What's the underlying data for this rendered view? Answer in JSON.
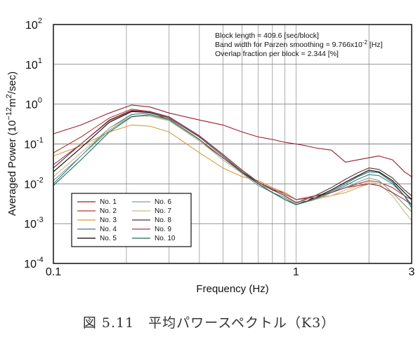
{
  "chart_data": {
    "type": "line",
    "xlabel": "Frequency (Hz)",
    "ylabel_parts": {
      "pre": "Averaged Power (10",
      "exp1": "−12",
      "mid": "m",
      "exp2": "2",
      "post": "/sec)"
    },
    "x_scale": "log",
    "y_scale": "log",
    "xlim": [
      0.1,
      3
    ],
    "ylim_exponents": [
      -4,
      2
    ],
    "x_ticks": [
      {
        "value": 0.1,
        "label": "0.1"
      },
      {
        "value": 1,
        "label": "1"
      },
      {
        "value": 3,
        "label": "3"
      }
    ],
    "y_ticks": [
      {
        "exp": 2,
        "base": "10",
        "sup": "2"
      },
      {
        "exp": 1,
        "base": "10",
        "sup": "1"
      },
      {
        "exp": 0,
        "base": "10",
        "sup": "0"
      },
      {
        "exp": -1,
        "base": "10",
        "sup": "-1"
      },
      {
        "exp": -2,
        "base": "10",
        "sup": "-2"
      },
      {
        "exp": -3,
        "base": "10",
        "sup": "-3"
      },
      {
        "exp": -4,
        "base": "10",
        "sup": "-4"
      }
    ],
    "grid": true,
    "legend_position": "lower-left",
    "annotations": [
      "Block length = 409.6 [sec/block]",
      "Band width for Parzen smoothing = 9.766x10",
      "Overlap fraction per block = 2.344 [%]"
    ],
    "annotation_exponent": "-2",
    "annotation_suffix": " [Hz]",
    "series": [
      {
        "name": "No. 1",
        "color": "#9a1c2c",
        "points": [
          [
            0.1,
            0.18
          ],
          [
            0.13,
            0.3
          ],
          [
            0.17,
            0.6
          ],
          [
            0.21,
            0.95
          ],
          [
            0.25,
            0.85
          ],
          [
            0.3,
            0.6
          ],
          [
            0.4,
            0.4
          ],
          [
            0.5,
            0.3
          ],
          [
            0.6,
            0.2
          ],
          [
            0.7,
            0.15
          ],
          [
            0.8,
            0.13
          ],
          [
            0.9,
            0.11
          ],
          [
            1.0,
            0.1
          ],
          [
            1.1,
            0.09
          ],
          [
            1.2,
            0.08
          ],
          [
            1.4,
            0.07
          ],
          [
            1.6,
            0.035
          ],
          [
            1.8,
            0.04
          ],
          [
            2.0,
            0.045
          ],
          [
            2.2,
            0.05
          ],
          [
            2.5,
            0.04
          ],
          [
            2.8,
            0.02
          ],
          [
            3.0,
            0.015
          ]
        ]
      },
      {
        "name": "No. 2",
        "color": "#b53a2f",
        "points": [
          [
            0.1,
            0.06
          ],
          [
            0.13,
            0.15
          ],
          [
            0.17,
            0.45
          ],
          [
            0.21,
            0.75
          ],
          [
            0.25,
            0.65
          ],
          [
            0.3,
            0.4
          ],
          [
            0.4,
            0.12
          ],
          [
            0.5,
            0.045
          ],
          [
            0.6,
            0.02
          ],
          [
            0.7,
            0.011
          ],
          [
            0.8,
            0.007
          ],
          [
            0.9,
            0.006
          ],
          [
            1.0,
            0.004
          ],
          [
            1.2,
            0.005
          ],
          [
            1.4,
            0.006
          ],
          [
            1.6,
            0.008
          ],
          [
            1.8,
            0.01
          ],
          [
            2.0,
            0.012
          ],
          [
            2.2,
            0.011
          ],
          [
            2.5,
            0.008
          ],
          [
            2.8,
            0.005
          ],
          [
            3.0,
            0.004
          ]
        ]
      },
      {
        "name": "No. 3",
        "color": "#d69a3a",
        "points": [
          [
            0.1,
            0.05
          ],
          [
            0.13,
            0.09
          ],
          [
            0.17,
            0.2
          ],
          [
            0.21,
            0.3
          ],
          [
            0.25,
            0.28
          ],
          [
            0.3,
            0.2
          ],
          [
            0.4,
            0.06
          ],
          [
            0.5,
            0.025
          ],
          [
            0.6,
            0.015
          ],
          [
            0.7,
            0.012
          ],
          [
            0.8,
            0.008
          ],
          [
            0.9,
            0.006
          ],
          [
            1.0,
            0.004
          ],
          [
            1.2,
            0.0045
          ],
          [
            1.4,
            0.005
          ],
          [
            1.6,
            0.006
          ],
          [
            1.8,
            0.008
          ],
          [
            2.0,
            0.01
          ],
          [
            2.2,
            0.009
          ],
          [
            2.5,
            0.006
          ],
          [
            2.8,
            0.003
          ],
          [
            3.0,
            0.002
          ]
        ]
      },
      {
        "name": "No. 4",
        "color": "#3a7a86",
        "points": [
          [
            0.1,
            0.01
          ],
          [
            0.13,
            0.05
          ],
          [
            0.17,
            0.25
          ],
          [
            0.21,
            0.55
          ],
          [
            0.25,
            0.6
          ],
          [
            0.3,
            0.45
          ],
          [
            0.4,
            0.15
          ],
          [
            0.5,
            0.05
          ],
          [
            0.6,
            0.02
          ],
          [
            0.7,
            0.01
          ],
          [
            0.8,
            0.006
          ],
          [
            0.9,
            0.004
          ],
          [
            1.0,
            0.003
          ],
          [
            1.2,
            0.004
          ],
          [
            1.4,
            0.006
          ],
          [
            1.6,
            0.009
          ],
          [
            1.8,
            0.013
          ],
          [
            2.0,
            0.017
          ],
          [
            2.2,
            0.016
          ],
          [
            2.5,
            0.01
          ],
          [
            2.8,
            0.005
          ],
          [
            3.0,
            0.003
          ]
        ]
      },
      {
        "name": "No. 5",
        "color": "#000000",
        "points": [
          [
            0.1,
            0.02
          ],
          [
            0.13,
            0.08
          ],
          [
            0.17,
            0.35
          ],
          [
            0.21,
            0.65
          ],
          [
            0.25,
            0.62
          ],
          [
            0.3,
            0.45
          ],
          [
            0.4,
            0.15
          ],
          [
            0.5,
            0.05
          ],
          [
            0.6,
            0.02
          ],
          [
            0.7,
            0.01
          ],
          [
            0.8,
            0.006
          ],
          [
            0.9,
            0.0045
          ],
          [
            1.0,
            0.003
          ],
          [
            1.2,
            0.0045
          ],
          [
            1.4,
            0.007
          ],
          [
            1.6,
            0.011
          ],
          [
            1.8,
            0.016
          ],
          [
            2.0,
            0.022
          ],
          [
            2.2,
            0.02
          ],
          [
            2.5,
            0.012
          ],
          [
            2.8,
            0.006
          ],
          [
            3.0,
            0.004
          ]
        ]
      },
      {
        "name": "No. 6",
        "color": "#7fa090",
        "points": [
          [
            0.1,
            0.012
          ],
          [
            0.13,
            0.05
          ],
          [
            0.17,
            0.22
          ],
          [
            0.21,
            0.5
          ],
          [
            0.25,
            0.52
          ],
          [
            0.3,
            0.4
          ],
          [
            0.4,
            0.12
          ],
          [
            0.5,
            0.04
          ],
          [
            0.6,
            0.018
          ],
          [
            0.7,
            0.009
          ],
          [
            0.8,
            0.006
          ],
          [
            0.9,
            0.0045
          ],
          [
            1.0,
            0.003
          ],
          [
            1.2,
            0.004
          ],
          [
            1.4,
            0.006
          ],
          [
            1.6,
            0.008
          ],
          [
            1.8,
            0.011
          ],
          [
            2.0,
            0.014
          ],
          [
            2.2,
            0.012
          ],
          [
            2.5,
            0.006
          ],
          [
            2.8,
            0.003
          ],
          [
            3.0,
            0.002
          ]
        ]
      },
      {
        "name": "No. 7",
        "color": "#c9b88c",
        "points": [
          [
            0.1,
            0.015
          ],
          [
            0.13,
            0.06
          ],
          [
            0.17,
            0.25
          ],
          [
            0.21,
            0.5
          ],
          [
            0.25,
            0.5
          ],
          [
            0.3,
            0.38
          ],
          [
            0.4,
            0.12
          ],
          [
            0.5,
            0.04
          ],
          [
            0.6,
            0.018
          ],
          [
            0.7,
            0.01
          ],
          [
            0.8,
            0.007
          ],
          [
            0.9,
            0.005
          ],
          [
            1.0,
            0.0035
          ],
          [
            1.2,
            0.004
          ],
          [
            1.4,
            0.005
          ],
          [
            1.6,
            0.007
          ],
          [
            1.8,
            0.009
          ],
          [
            2.0,
            0.011
          ],
          [
            2.2,
            0.01
          ],
          [
            2.5,
            0.005
          ],
          [
            2.8,
            0.002
          ],
          [
            3.0,
            0.0012
          ]
        ]
      },
      {
        "name": "No. 8",
        "color": "#5a2f35",
        "points": [
          [
            0.1,
            0.025
          ],
          [
            0.13,
            0.1
          ],
          [
            0.17,
            0.4
          ],
          [
            0.21,
            0.7
          ],
          [
            0.25,
            0.65
          ],
          [
            0.3,
            0.48
          ],
          [
            0.4,
            0.16
          ],
          [
            0.5,
            0.055
          ],
          [
            0.6,
            0.022
          ],
          [
            0.7,
            0.011
          ],
          [
            0.8,
            0.007
          ],
          [
            0.9,
            0.005
          ],
          [
            1.0,
            0.0033
          ],
          [
            1.2,
            0.005
          ],
          [
            1.4,
            0.008
          ],
          [
            1.6,
            0.013
          ],
          [
            1.8,
            0.019
          ],
          [
            2.0,
            0.025
          ],
          [
            2.2,
            0.023
          ],
          [
            2.5,
            0.014
          ],
          [
            2.8,
            0.007
          ],
          [
            3.0,
            0.005
          ]
        ]
      },
      {
        "name": "No. 9",
        "color": "#a23a5e",
        "points": [
          [
            0.1,
            0.03
          ],
          [
            0.13,
            0.1
          ],
          [
            0.17,
            0.38
          ],
          [
            0.21,
            0.68
          ],
          [
            0.25,
            0.63
          ],
          [
            0.3,
            0.45
          ],
          [
            0.4,
            0.15
          ],
          [
            0.5,
            0.05
          ],
          [
            0.6,
            0.02
          ],
          [
            0.7,
            0.011
          ],
          [
            0.8,
            0.0075
          ],
          [
            0.9,
            0.0055
          ],
          [
            1.0,
            0.004
          ],
          [
            1.2,
            0.0045
          ],
          [
            1.4,
            0.006
          ],
          [
            1.6,
            0.008
          ],
          [
            1.8,
            0.009
          ],
          [
            2.0,
            0.01
          ],
          [
            2.2,
            0.009
          ],
          [
            2.5,
            0.006
          ],
          [
            2.8,
            0.004
          ],
          [
            3.0,
            0.003
          ]
        ]
      },
      {
        "name": "No. 10",
        "color": "#1f6a5a",
        "points": [
          [
            0.1,
            0.009
          ],
          [
            0.13,
            0.04
          ],
          [
            0.17,
            0.2
          ],
          [
            0.21,
            0.48
          ],
          [
            0.25,
            0.55
          ],
          [
            0.3,
            0.42
          ],
          [
            0.4,
            0.13
          ],
          [
            0.5,
            0.045
          ],
          [
            0.6,
            0.019
          ],
          [
            0.7,
            0.01
          ],
          [
            0.8,
            0.006
          ],
          [
            0.9,
            0.004
          ],
          [
            1.0,
            0.003
          ],
          [
            1.2,
            0.0042
          ],
          [
            1.4,
            0.0065
          ],
          [
            1.6,
            0.01
          ],
          [
            1.8,
            0.015
          ],
          [
            2.0,
            0.02
          ],
          [
            2.2,
            0.019
          ],
          [
            2.5,
            0.011
          ],
          [
            2.8,
            0.005
          ],
          [
            3.0,
            0.0025
          ]
        ]
      }
    ]
  },
  "caption": "図 5.11　平均パワースペクトル（K3）"
}
